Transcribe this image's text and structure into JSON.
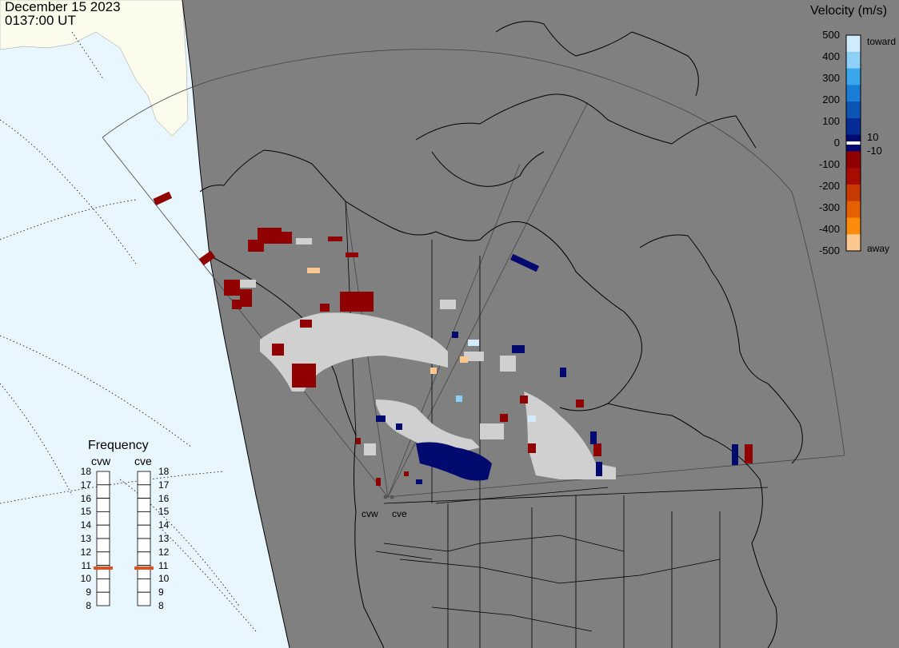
{
  "header": {
    "date": "December 15 2023",
    "time": "0137:00 UT"
  },
  "velocity_scale": {
    "title": "Velocity (m/s)",
    "ticks": [
      "500",
      "400",
      "300",
      "200",
      "100",
      "0",
      "-100",
      "-200",
      "-300",
      "-400",
      "-500"
    ],
    "inner_ticks": [
      "10",
      "-10"
    ],
    "toward_label": "toward",
    "away_label": "away",
    "colors": [
      "#d0ecfc",
      "#8ed0f8",
      "#3aa6ec",
      "#1b7ed6",
      "#0b55b4",
      "#062c96",
      "#020a70",
      "#900000",
      "#a80c00",
      "#c63a00",
      "#e46000",
      "#fc8c0c",
      "#fdc890"
    ]
  },
  "frequency": {
    "title": "Frequency",
    "radars": [
      "cvw",
      "cve"
    ],
    "ticks": [
      "18",
      "17",
      "16",
      "15",
      "14",
      "13",
      "12",
      "11",
      "10",
      "9",
      "8"
    ],
    "cvw_value_mhz": 10.8,
    "cve_value_mhz": 10.8,
    "marker_color": "#e0501e"
  },
  "map_labels": {
    "cvw": "cvw",
    "cve": "cve"
  },
  "colors": {
    "night": "#808080",
    "ocean_day": "#e8f6ff",
    "land_day": "#fcfcec",
    "ground_scatter": "#d0d0d0"
  }
}
